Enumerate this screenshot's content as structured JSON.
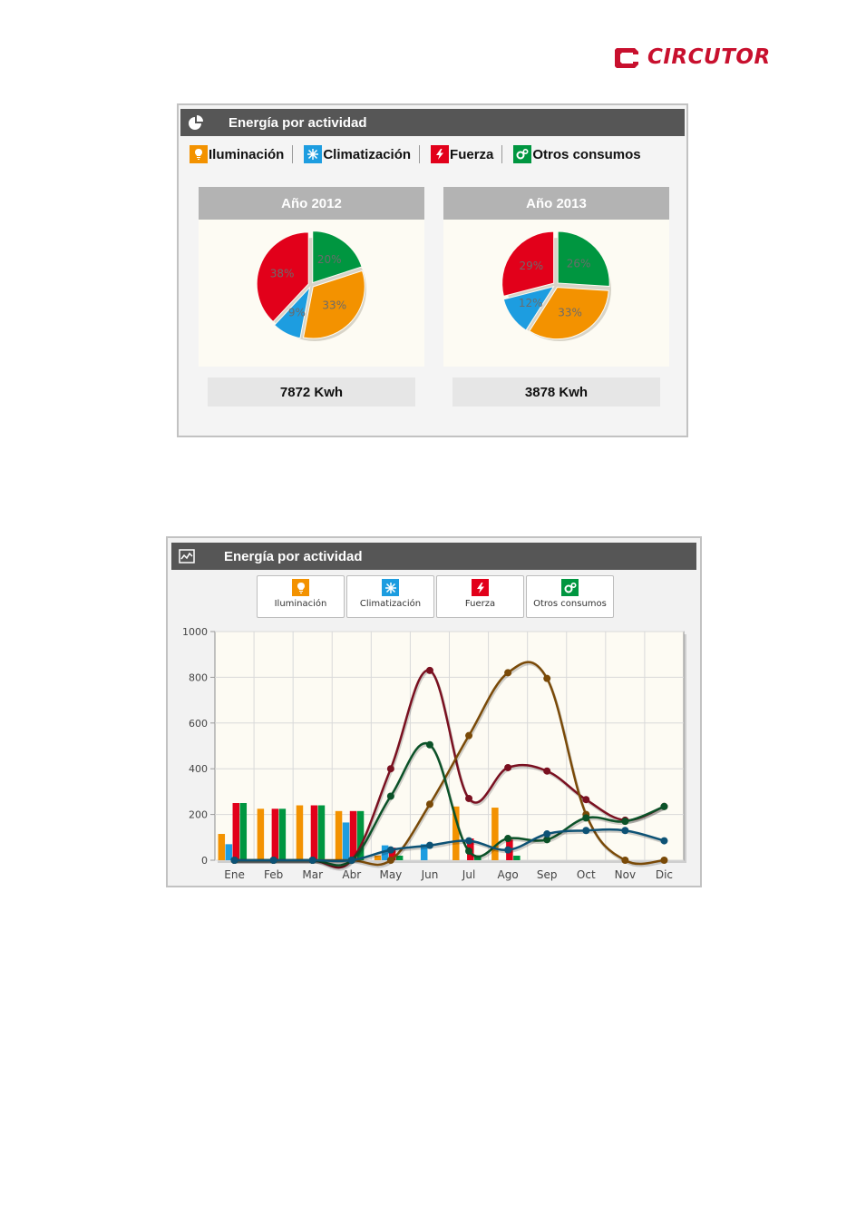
{
  "logo": {
    "text": "CIRCUTOR"
  },
  "panel1": {
    "title": "Energía por actividad",
    "legend": [
      {
        "label": "Iluminación",
        "color": "#f39200",
        "icon": "light-bulb-icon"
      },
      {
        "label": "Climatización",
        "color": "#1d9de0",
        "icon": "snowflake-icon"
      },
      {
        "label": "Fuerza",
        "color": "#e2001a",
        "icon": "lightning-icon"
      },
      {
        "label": "Otros consumos",
        "color": "#009640",
        "icon": "gears-icon"
      }
    ],
    "years": [
      {
        "title": "Año 2012",
        "total": "7872 Kwh"
      },
      {
        "title": "Año 2013",
        "total": "3878 Kwh"
      }
    ]
  },
  "panel2": {
    "title": "Energía por actividad",
    "buttons": [
      {
        "label": "Iluminación",
        "color": "#f39200",
        "icon": "light-bulb-icon"
      },
      {
        "label": "Climatización",
        "color": "#1d9de0",
        "icon": "snowflake-icon"
      },
      {
        "label": "Fuerza",
        "color": "#e2001a",
        "icon": "lightning-icon"
      },
      {
        "label": "Otros consumos",
        "color": "#009640",
        "icon": "gears-icon"
      }
    ]
  },
  "chart_data": [
    {
      "type": "pie",
      "title": "Año 2012",
      "slices": [
        {
          "label": "Otros consumos",
          "value": 20,
          "text": "20%",
          "color": "#009640"
        },
        {
          "label": "Iluminación",
          "value": 33,
          "text": "33%",
          "color": "#f39200"
        },
        {
          "label": "Climatización",
          "value": 9,
          "text": "9%",
          "color": "#1d9de0"
        },
        {
          "label": "Fuerza",
          "value": 38,
          "text": "38%",
          "color": "#e2001a"
        }
      ]
    },
    {
      "type": "pie",
      "title": "Año 2013",
      "slices": [
        {
          "label": "Otros consumos",
          "value": 26,
          "text": "26%",
          "color": "#009640"
        },
        {
          "label": "Iluminación",
          "value": 33,
          "text": "33%",
          "color": "#f39200"
        },
        {
          "label": "Climatización",
          "value": 12,
          "text": "12%",
          "color": "#1d9de0"
        },
        {
          "label": "Fuerza",
          "value": 29,
          "text": "29%",
          "color": "#e2001a"
        }
      ]
    },
    {
      "type": "bar",
      "categories": [
        "Ene",
        "Feb",
        "Mar",
        "Abr",
        "May",
        "Jun",
        "Jul",
        "Ago",
        "Sep",
        "Oct",
        "Nov",
        "Dic"
      ],
      "ylim": [
        0,
        1000
      ],
      "yticks": [
        0,
        200,
        400,
        600,
        800,
        1000
      ],
      "grid": true,
      "series": [
        {
          "name": "Iluminación",
          "kind": "bar",
          "color": "#f39200",
          "values": [
            115,
            225,
            240,
            215,
            20,
            0,
            235,
            230,
            0,
            0,
            0,
            0
          ]
        },
        {
          "name": "Climatización",
          "kind": "bar",
          "color": "#1d9de0",
          "values": [
            70,
            0,
            0,
            165,
            65,
            70,
            0,
            0,
            0,
            0,
            0,
            0
          ]
        },
        {
          "name": "Fuerza",
          "kind": "bar",
          "color": "#e2001a",
          "values": [
            250,
            225,
            240,
            215,
            55,
            0,
            95,
            90,
            0,
            0,
            0,
            0
          ]
        },
        {
          "name": "Otros consumos",
          "kind": "bar",
          "color": "#009640",
          "values": [
            250,
            225,
            240,
            215,
            20,
            0,
            20,
            20,
            0,
            0,
            0,
            0
          ]
        },
        {
          "kind": "line",
          "color": "#7a1020",
          "values": [
            0,
            0,
            0,
            0,
            400,
            830,
            270,
            405,
            390,
            265,
            175,
            235
          ]
        },
        {
          "kind": "line",
          "color": "#7a4a08",
          "values": [
            0,
            0,
            0,
            0,
            0,
            245,
            545,
            820,
            795,
            200,
            0,
            0
          ]
        },
        {
          "kind": "line",
          "color": "#0b5228",
          "values": [
            0,
            0,
            0,
            0,
            280,
            505,
            40,
            95,
            90,
            185,
            170,
            235
          ]
        },
        {
          "kind": "line",
          "color": "#0d5275",
          "values": [
            0,
            0,
            0,
            0,
            45,
            65,
            85,
            45,
            115,
            130,
            130,
            85
          ]
        }
      ]
    }
  ]
}
